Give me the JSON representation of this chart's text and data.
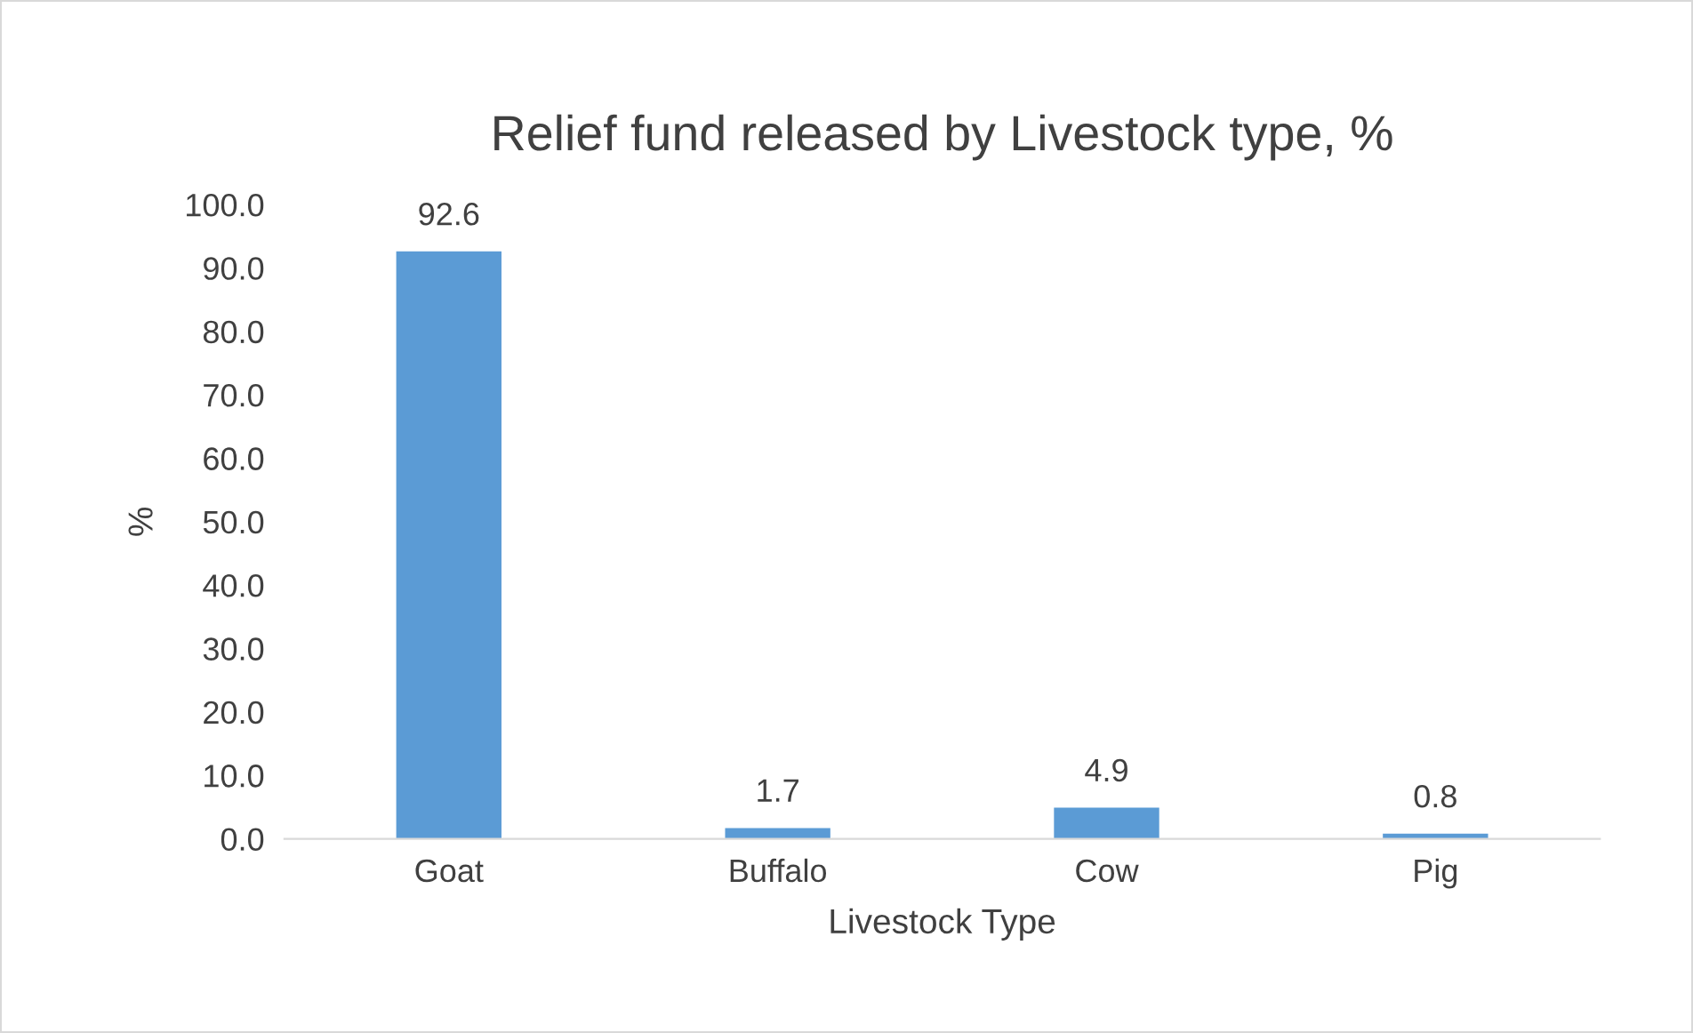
{
  "chart_data": {
    "type": "bar",
    "title": "Relief fund released by Livestock type, %",
    "xlabel": "Livestock Type",
    "ylabel": "%",
    "categories": [
      "Goat",
      "Buffalo",
      "Cow",
      "Pig"
    ],
    "values": [
      92.6,
      1.7,
      4.9,
      0.8
    ],
    "color": "#5b9bd5",
    "data_labels": true,
    "grid": false,
    "legend": false,
    "ylim": [
      0,
      100
    ],
    "yticks": [
      {
        "value": 0,
        "label": "0.0"
      },
      {
        "value": 10,
        "label": "10.0"
      },
      {
        "value": 20,
        "label": "20.0"
      },
      {
        "value": 30,
        "label": "30.0"
      },
      {
        "value": 40,
        "label": "40.0"
      },
      {
        "value": 50,
        "label": "50.0"
      },
      {
        "value": 60,
        "label": "60.0"
      },
      {
        "value": 70,
        "label": "70.0"
      },
      {
        "value": 80,
        "label": "80.0"
      },
      {
        "value": 90,
        "label": "90.0"
      },
      {
        "value": 100,
        "label": "100.0"
      }
    ]
  }
}
